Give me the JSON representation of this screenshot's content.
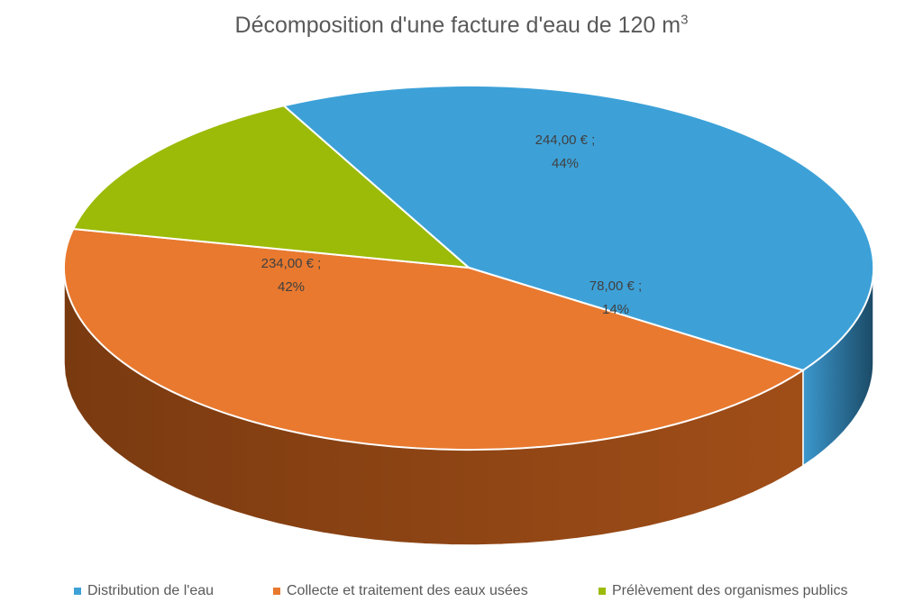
{
  "chart_data": {
    "type": "pie",
    "title": "Décomposition d'une facture d'eau de 120 m",
    "title_superscript": "3",
    "series": [
      {
        "name": "",
        "values": [
          234,
          244,
          78
        ]
      }
    ],
    "categories": [
      "Distribution de l'eau",
      "Collecte et traitement des eaux usées",
      "Prélèvement des organismes publics"
    ],
    "values": [
      234,
      244,
      78
    ],
    "data_labels": [
      {
        "value": "234,00 € ;",
        "percent": "42%"
      },
      {
        "value": "244,00 € ;",
        "percent": "44%"
      },
      {
        "value": "78,00 € ;",
        "percent": "14%"
      }
    ],
    "colors": [
      "#3DA1D8",
      "#E8792F",
      "#9BBB08"
    ],
    "side_colors": [
      "#2E85B8",
      "#B65A1E",
      "#3E4A02"
    ],
    "legend_position": "bottom",
    "style": "3d"
  }
}
